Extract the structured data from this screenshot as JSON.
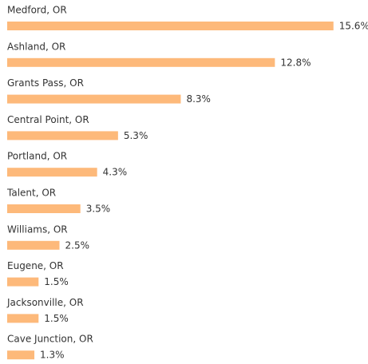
{
  "chart_data": {
    "type": "bar",
    "orientation": "horizontal",
    "color": "#fdb97a",
    "categories": [
      "Medford, OR",
      "Ashland, OR",
      "Grants Pass, OR",
      "Central Point, OR",
      "Portland, OR",
      "Talent, OR",
      "Williams, OR",
      "Eugene, OR",
      "Jacksonville, OR",
      "Cave Junction, OR"
    ],
    "values": [
      15.6,
      12.8,
      8.3,
      5.3,
      4.3,
      3.5,
      2.5,
      1.5,
      1.5,
      1.3
    ],
    "value_labels": [
      "15.6%",
      "12.8%",
      "8.3%",
      "5.3%",
      "4.3%",
      "3.5%",
      "2.5%",
      "1.5%",
      "1.5%",
      "1.3%"
    ]
  }
}
